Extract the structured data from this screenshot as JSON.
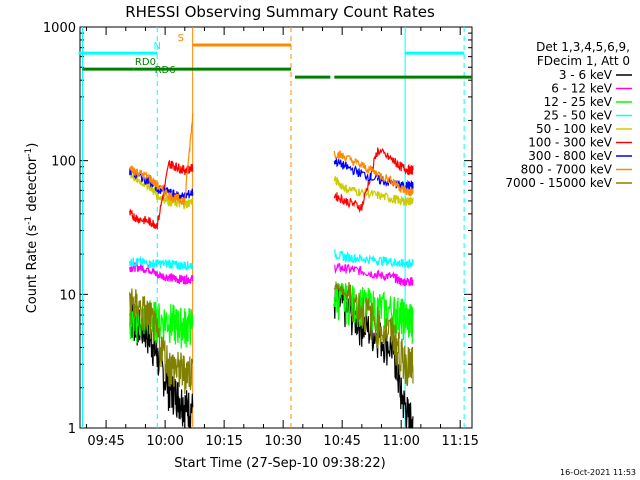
{
  "chart_data": {
    "type": "line",
    "title": "RHESSI Observing Summary Count Rates",
    "xlabel": "Start Time (27-Sep-10 09:38:22)",
    "ylabel": "Count Rate (s^-1 detector^-1)",
    "ylabel_parts": {
      "main": "Count Rate (s",
      "sup1": "-1",
      "mid": " detector",
      "sup2": "-1",
      "end": ")"
    },
    "y_scale": "log",
    "ylim": [
      1,
      1000
    ],
    "xlim": [
      "09:38:22",
      "11:18:00"
    ],
    "x_ticks": [
      "09:45",
      "10:00",
      "10:15",
      "10:30",
      "10:45",
      "11:00",
      "11:15"
    ],
    "y_ticks": [
      "1",
      "10",
      "100",
      "1000"
    ],
    "timestamp": "16-Oct-2021 11:53",
    "legend": {
      "header": [
        "Det 1,3,4,5,6,9,",
        "FDecim 1, Att 0"
      ],
      "placement": "right"
    },
    "gaps": [
      [
        "10:06",
        "10:42"
      ]
    ],
    "series": [
      {
        "name": "3 - 6 keV",
        "color": "#000000",
        "x": [
          "09:51",
          "09:53",
          "09:56",
          "09:58",
          "10:01",
          "10:03",
          "10:05",
          "10:07",
          "10:43",
          "10:46",
          "10:50",
          "10:54",
          "10:58",
          "11:00",
          "11:02",
          "11:03"
        ],
        "values": [
          7,
          6,
          5,
          3.5,
          2,
          1.8,
          1.5,
          1.4,
          9,
          8,
          6,
          5,
          4,
          1.8,
          1.2,
          1.1
        ]
      },
      {
        "name": "6 - 12 keV",
        "color": "#ff00ff",
        "x": [
          "09:51",
          "09:53",
          "09:56",
          "09:58",
          "10:01",
          "10:03",
          "10:05",
          "10:07",
          "10:43",
          "10:46",
          "10:50",
          "10:54",
          "10:58",
          "11:00",
          "11:02",
          "11:03"
        ],
        "values": [
          16,
          16,
          15.5,
          14,
          13.5,
          13,
          13,
          13,
          16,
          15.5,
          15,
          14,
          13.5,
          12.5,
          12.5,
          12.5
        ]
      },
      {
        "name": "12 - 25 keV",
        "color": "#00ff00",
        "x": [
          "09:51",
          "09:53",
          "09:56",
          "09:58",
          "10:01",
          "10:03",
          "10:05",
          "10:07",
          "10:43",
          "10:46",
          "10:50",
          "10:54",
          "10:58",
          "11:00",
          "11:02",
          "11:03"
        ],
        "values": [
          6,
          6.5,
          7,
          6.5,
          6.5,
          6,
          6,
          6,
          10,
          9,
          8.5,
          8,
          7.5,
          7,
          6.5,
          6.5
        ]
      },
      {
        "name": "25 - 50 keV",
        "color": "#00ffff",
        "x": [
          "09:51",
          "09:53",
          "09:56",
          "09:58",
          "10:01",
          "10:03",
          "10:05",
          "10:07",
          "10:43",
          "10:46",
          "10:50",
          "10:54",
          "10:58",
          "11:00",
          "11:02",
          "11:03"
        ],
        "values": [
          17.5,
          17.5,
          17,
          17,
          17,
          16.5,
          16.5,
          16.5,
          20,
          19,
          18.5,
          18,
          17.5,
          17,
          17,
          17
        ]
      },
      {
        "name": "50 - 100 keV",
        "color": "#cccc00",
        "x": [
          "09:51",
          "09:53",
          "09:56",
          "09:58",
          "10:01",
          "10:03",
          "10:05",
          "10:07",
          "10:43",
          "10:46",
          "10:50",
          "10:54",
          "10:58",
          "11:00",
          "11:02",
          "11:03"
        ],
        "values": [
          80,
          72,
          65,
          55,
          50,
          48,
          47,
          50,
          72,
          62,
          58,
          55,
          52,
          50,
          50,
          50
        ]
      },
      {
        "name": "100 - 300 keV",
        "color": "#ff0000",
        "x": [
          "09:51",
          "09:53",
          "09:56",
          "09:58",
          "10:01",
          "10:03",
          "10:05",
          "10:07",
          "10:43",
          "10:46",
          "10:50",
          "10:54",
          "10:58",
          "11:00",
          "11:02",
          "11:03"
        ],
        "values": [
          40,
          37,
          35,
          33,
          95,
          90,
          85,
          88,
          55,
          50,
          45,
          120,
          100,
          90,
          85,
          85
        ]
      },
      {
        "name": "300 - 800 keV",
        "color": "#0000ff",
        "x": [
          "09:51",
          "09:53",
          "09:56",
          "09:58",
          "10:01",
          "10:03",
          "10:05",
          "10:07",
          "10:43",
          "10:46",
          "10:50",
          "10:54",
          "10:58",
          "11:00",
          "11:02",
          "11:03"
        ],
        "values": [
          85,
          78,
          70,
          62,
          58,
          55,
          54,
          58,
          100,
          90,
          80,
          72,
          68,
          65,
          65,
          65
        ]
      },
      {
        "name": "800 - 7000 keV",
        "color": "#ff8800",
        "x": [
          "09:51",
          "09:53",
          "09:56",
          "09:58",
          "10:01",
          "10:03",
          "10:05",
          "10:07",
          "10:43",
          "10:46",
          "10:50",
          "10:54",
          "10:58",
          "11:00",
          "11:02",
          "11:03"
        ],
        "values": [
          88,
          82,
          75,
          65,
          55,
          52,
          50,
          220,
          115,
          105,
          92,
          80,
          70,
          62,
          58,
          58
        ]
      },
      {
        "name": "7000 - 15000 keV",
        "color": "#808000",
        "x": [
          "09:51",
          "09:53",
          "09:56",
          "09:58",
          "10:01",
          "10:03",
          "10:05",
          "10:07",
          "10:43",
          "10:46",
          "10:50",
          "10:54",
          "10:58",
          "11:00",
          "11:02",
          "11:03"
        ],
        "values": [
          9,
          8,
          7,
          5,
          3,
          2.8,
          2.7,
          2.7,
          12,
          10,
          8,
          6,
          5,
          3.5,
          3,
          3
        ]
      }
    ],
    "status_bars": [
      {
        "label": "N",
        "color": "#00ffff",
        "label_at": "09:58",
        "segments": [
          [
            "09:38",
            "09:58"
          ],
          [
            "11:01",
            "11:16"
          ]
        ],
        "level": 0.935
      },
      {
        "label": "S",
        "color": "#ff8800",
        "label_at": "10:04",
        "segments": [
          [
            "10:07",
            "10:32"
          ]
        ],
        "level": 0.955
      },
      {
        "label": "RD0",
        "color": "#008000",
        "label_at": "09:55",
        "segments": [
          [
            "09:39",
            "09:52"
          ],
          [
            "09:52",
            "10:32"
          ]
        ],
        "level": 0.895
      },
      {
        "label": "RD6",
        "color": "#008000",
        "label_at": "10:00",
        "segments": [
          [
            "10:33",
            "10:42"
          ],
          [
            "10:43",
            "11:18"
          ]
        ],
        "level": 0.875
      }
    ],
    "vlines": [
      {
        "t": "09:39",
        "color": "#00ffff",
        "style": "solid"
      },
      {
        "t": "09:58",
        "color": "#00ffff",
        "style": "dashed"
      },
      {
        "t": "10:07",
        "color": "#ff8800",
        "style": "solid"
      },
      {
        "t": "10:32",
        "color": "#ff8800",
        "style": "dashed"
      },
      {
        "t": "11:01",
        "color": "#00ffff",
        "style": "solid"
      },
      {
        "t": "11:16",
        "color": "#00ffff",
        "style": "dashed"
      }
    ]
  }
}
